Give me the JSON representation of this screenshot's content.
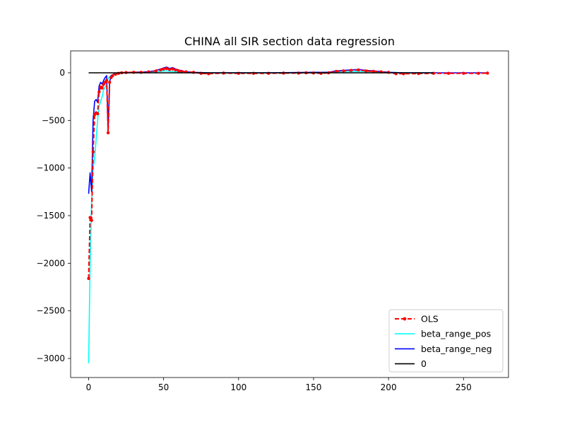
{
  "chart_data": {
    "type": "line",
    "title": "CHINA all SIR section data regression",
    "xlabel": "",
    "ylabel": "",
    "xlim": [
      -12,
      280
    ],
    "ylim": [
      -3200,
      230
    ],
    "x_ticks": [
      0,
      50,
      100,
      150,
      200,
      250
    ],
    "y_ticks": [
      0,
      -500,
      -1000,
      -1500,
      -2000,
      -2500,
      -3000
    ],
    "x_tick_labels": [
      "0",
      "50",
      "100",
      "150",
      "200",
      "250"
    ],
    "y_tick_labels": [
      "0",
      "−500",
      "−1000",
      "−1500",
      "−2000",
      "−2500",
      "−3000"
    ],
    "grid": false,
    "legend_position": "lower-right",
    "series": [
      {
        "name": "OLS",
        "color": "#ff0000",
        "style": "dashed",
        "marker": "dot",
        "x": [
          0,
          1,
          2,
          3,
          4,
          5,
          6,
          7,
          8,
          9,
          10,
          11,
          12,
          13,
          14,
          15,
          16,
          18,
          20,
          22,
          25,
          30,
          35,
          40,
          45,
          48,
          50,
          52,
          54,
          56,
          58,
          60,
          62,
          65,
          70,
          75,
          80,
          90,
          100,
          110,
          120,
          130,
          140,
          145,
          150,
          155,
          160,
          165,
          170,
          175,
          180,
          185,
          190,
          195,
          200,
          205,
          210,
          220,
          230,
          240,
          250,
          260,
          266
        ],
        "y": [
          -2160,
          -1520,
          -1550,
          -830,
          -440,
          -420,
          -430,
          -200,
          -150,
          -160,
          -120,
          -100,
          -80,
          -630,
          -100,
          -50,
          -30,
          -15,
          -5,
          0,
          3,
          5,
          5,
          10,
          20,
          30,
          40,
          45,
          35,
          40,
          30,
          20,
          15,
          10,
          5,
          -5,
          -10,
          -3,
          -5,
          -5,
          -5,
          -3,
          -3,
          0,
          -2,
          -5,
          0,
          15,
          20,
          25,
          30,
          20,
          15,
          10,
          5,
          -10,
          -10,
          -8,
          -5,
          -5,
          -5,
          -5,
          -3
        ]
      },
      {
        "name": "beta_range_pos",
        "color": "#00ffff",
        "style": "solid",
        "x": [
          0,
          1,
          2,
          3,
          4,
          5,
          6,
          7,
          8,
          9,
          10,
          11,
          12,
          13,
          14,
          15,
          16,
          18,
          20,
          22,
          25,
          30,
          35,
          40,
          45,
          48,
          50,
          52,
          54,
          56,
          58,
          60,
          62,
          65,
          70,
          80,
          100,
          120,
          140,
          150,
          160,
          170,
          180,
          190,
          200,
          210,
          220,
          230
        ],
        "y": [
          -3050,
          -2000,
          -1350,
          -1000,
          -900,
          -700,
          -500,
          -350,
          -300,
          -250,
          -180,
          -150,
          -130,
          -60,
          -40,
          -30,
          -20,
          -10,
          -5,
          0,
          0,
          3,
          5,
          5,
          10,
          15,
          20,
          20,
          15,
          15,
          10,
          8,
          5,
          3,
          2,
          0,
          0,
          0,
          0,
          0,
          5,
          10,
          15,
          10,
          5,
          0,
          0,
          0
        ]
      },
      {
        "name": "beta_range_neg",
        "color": "#0000ff",
        "style": "solid",
        "x": [
          0,
          1,
          2,
          3,
          4,
          5,
          6,
          7,
          8,
          9,
          10,
          11,
          12,
          13,
          14,
          15,
          16,
          18,
          20,
          22,
          25,
          30,
          35,
          40,
          45,
          48,
          50,
          52,
          54,
          56,
          58,
          60,
          62,
          65,
          70,
          80,
          100,
          120,
          140,
          150,
          160,
          165,
          170,
          175,
          180,
          185,
          190,
          200,
          210,
          220,
          230,
          240,
          250,
          260,
          266
        ],
        "y": [
          -1270,
          -1050,
          -1250,
          -500,
          -300,
          -280,
          -310,
          -140,
          -100,
          -120,
          -80,
          -50,
          -30,
          -620,
          -100,
          -30,
          -20,
          -5,
          0,
          0,
          3,
          5,
          8,
          10,
          25,
          40,
          50,
          60,
          45,
          55,
          40,
          30,
          20,
          10,
          5,
          0,
          0,
          0,
          3,
          5,
          5,
          20,
          25,
          30,
          35,
          25,
          20,
          5,
          0,
          0,
          0,
          0,
          0,
          0,
          0
        ]
      },
      {
        "name": "0",
        "color": "#000000",
        "style": "solid",
        "x": [
          0,
          230
        ],
        "y": [
          0,
          0
        ]
      }
    ]
  }
}
